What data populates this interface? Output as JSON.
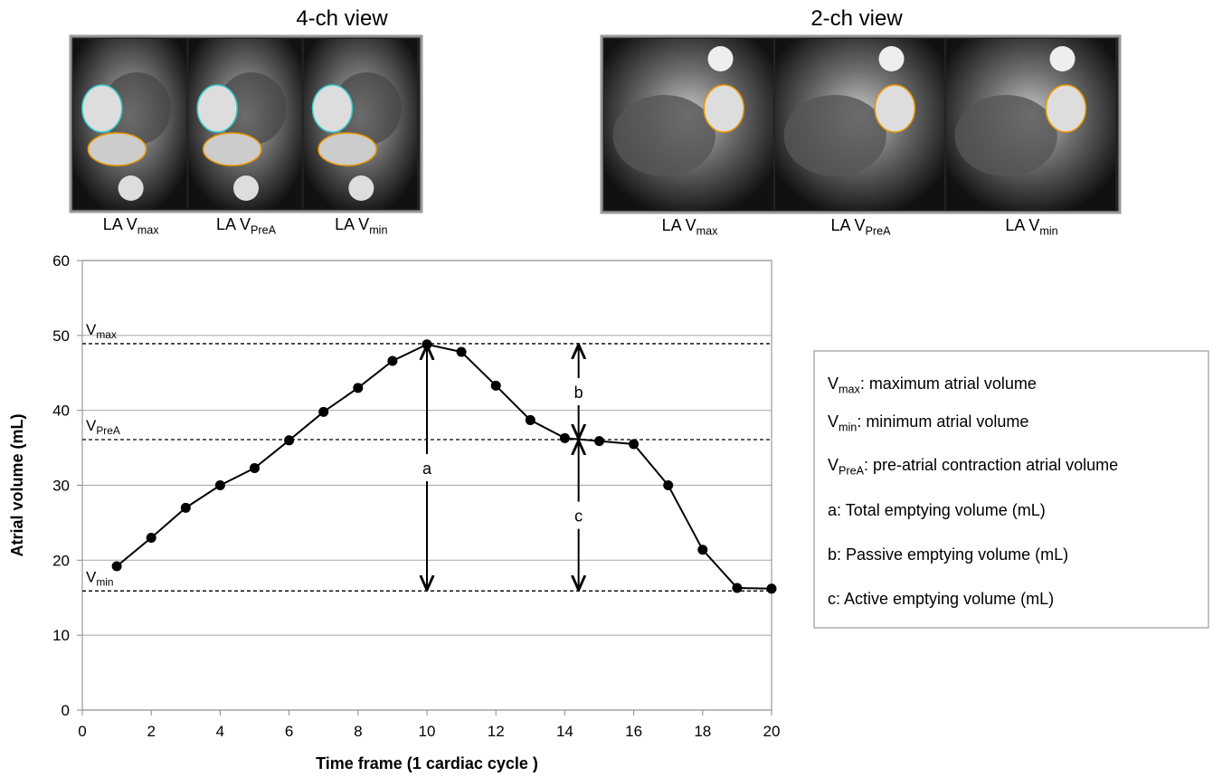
{
  "chart_data": {
    "type": "line",
    "panels": [
      {
        "title": "4-ch view",
        "images": [
          {
            "main": "LA V",
            "sub": "max"
          },
          {
            "main": "LA V",
            "sub": "PreA"
          },
          {
            "main": "LA V",
            "sub": "min"
          }
        ]
      },
      {
        "title": "2-ch view",
        "images": [
          {
            "main": "LA V",
            "sub": "max"
          },
          {
            "main": "LA V",
            "sub": "PreA"
          },
          {
            "main": "LA V",
            "sub": "min"
          }
        ]
      }
    ],
    "x_label": "Time frame (1 cardiac cycle )",
    "y_label": "Atrial volume (mL)",
    "x": [
      1,
      2,
      3,
      4,
      5,
      6,
      7,
      8,
      9,
      10,
      11,
      12,
      13,
      14,
      15,
      16,
      17,
      18,
      19,
      20
    ],
    "values": [
      19.2,
      23,
      27,
      30,
      32.3,
      36,
      39.8,
      43,
      46.6,
      48.8,
      47.8,
      43.3,
      38.7,
      36.3,
      35.9,
      35.5,
      30,
      21.4,
      16.3,
      16.2
    ],
    "color": "#000000",
    "xlim": [
      0,
      20
    ],
    "xticks": [
      0,
      2,
      4,
      6,
      8,
      10,
      12,
      14,
      16,
      18,
      20
    ],
    "ylim": [
      0,
      60
    ],
    "yticks": [
      0,
      10,
      20,
      30,
      40,
      50,
      60
    ],
    "grid": true,
    "reference_lines": [
      {
        "main": "V",
        "sub": "max",
        "value": 48.9
      },
      {
        "main": "V",
        "sub": "PreA",
        "value": 36.1
      },
      {
        "main": "V",
        "sub": "min",
        "value": 15.9
      }
    ],
    "annotations": [
      {
        "label": "a",
        "x": 10,
        "y": [
          48.8,
          15.9
        ]
      },
      {
        "label": "b",
        "x": 14.4,
        "y": [
          48.9,
          36.1
        ]
      },
      {
        "label": "c",
        "x": 14.4,
        "y": [
          36.1,
          15.9
        ]
      }
    ],
    "legend": [
      {
        "main": "V",
        "sub": "max",
        "text": ": maximum atrial volume"
      },
      {
        "main": "V",
        "sub": "min",
        "text": ": minimum atrial volume"
      },
      {
        "main": "V",
        "sub": "PreA",
        "text": ": pre-atrial contraction atrial volume"
      },
      {
        "text": "a: Total emptying volume (mL)"
      },
      {
        "text": "b: Passive emptying volume (mL)"
      },
      {
        "text": "c: Active emptying volume (mL)"
      }
    ]
  }
}
